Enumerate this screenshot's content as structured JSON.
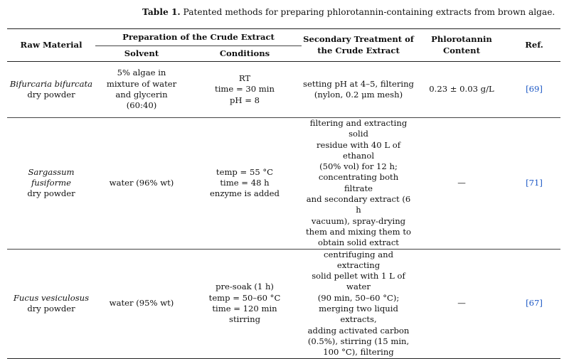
{
  "caption": {
    "label": "Table 1.",
    "text": "Patented methods for preparing phlorotannin-containing extracts from brown algae."
  },
  "headers": {
    "raw_material": "Raw Material",
    "preparation": "Preparation of the Crude Extract",
    "solvent": "Solvent",
    "conditions": "Conditions",
    "secondary_line1": "Secondary Treatment of",
    "secondary_line2": "the Crude Extract",
    "content_line1": "Phlorotannin",
    "content_line2": "Content",
    "ref": "Ref."
  },
  "rows": [
    {
      "species": "Bifurcaria bifurcata",
      "form": "dry powder",
      "solvent": [
        "5% algae in",
        "mixture of water",
        "and glycerin",
        "(60:40)"
      ],
      "conditions": [
        "RT",
        "time = 30 min",
        "pH = 8"
      ],
      "secondary": [
        "setting pH at 4–5, filtering",
        "(nylon, 0.2 μm mesh)"
      ],
      "content": "0.23 ± 0.03 g/L",
      "ref": "[69]"
    },
    {
      "species": "Sargassum fusiforme",
      "form": "dry powder",
      "solvent": [
        "water (96% wt)"
      ],
      "conditions": [
        "temp = 55 °C",
        "time = 48 h",
        "enzyme is added"
      ],
      "secondary": [
        "filtering and extracting solid",
        "residue with 40 L of ethanol",
        "(50% vol) for 12 h;",
        "concentrating both filtrate",
        "and secondary extract (6 h",
        "vacuum), spray-drying",
        "them and mixing them to",
        "obtain solid extract"
      ],
      "content": "—",
      "ref": "[71]"
    },
    {
      "species": "Fucus vesiculosus",
      "form": "dry powder",
      "solvent": [
        "water (95% wt)"
      ],
      "conditions": [
        "pre-soak (1 h)",
        "temp = 50–60 °C",
        "time = 120 min",
        "stirring"
      ],
      "secondary": [
        "centrifuging and extracting",
        "solid pellet with 1 L of water",
        "(90 min, 50–60 °C);",
        "merging two liquid extracts,",
        "adding activated carbon",
        "(0.5%), stirring (15 min,",
        "100 °C), filtering"
      ],
      "content": "—",
      "ref": "[67]"
    }
  ]
}
